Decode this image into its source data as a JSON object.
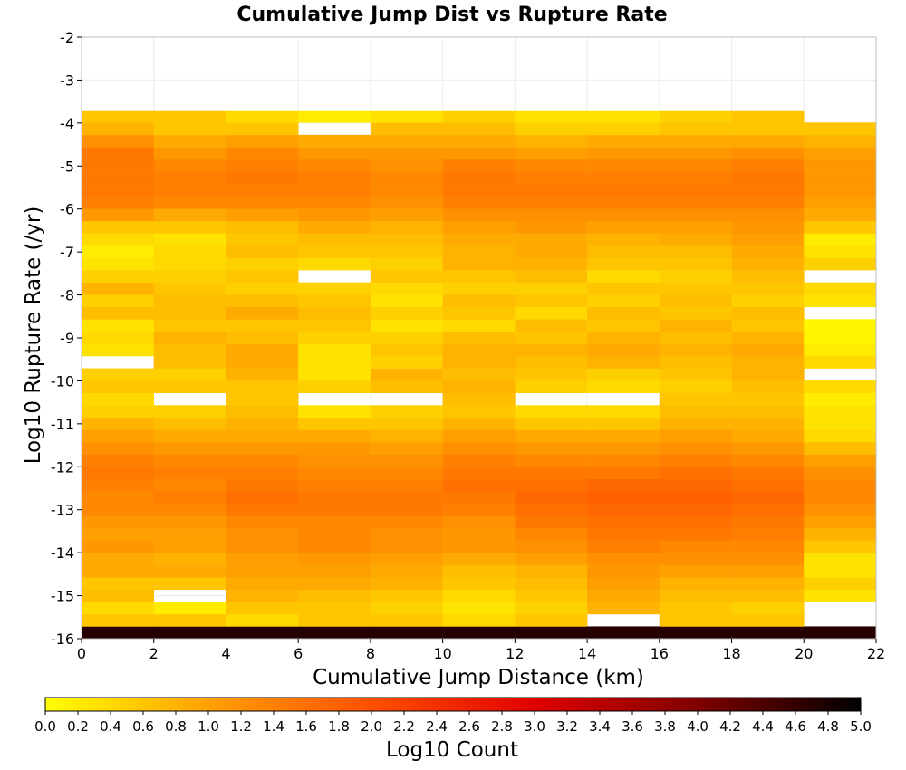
{
  "chart_data": {
    "type": "heatmap",
    "title": "Cumulative Jump Dist vs Rupture Rate",
    "xlabel": "Cumulative Jump Distance (km)",
    "ylabel": "Log10 Rupture Rate (/yr)",
    "xlim": [
      0,
      22
    ],
    "ylim": [
      -16,
      -2
    ],
    "x_ticks": [
      "0",
      "2",
      "4",
      "6",
      "8",
      "10",
      "12",
      "14",
      "16",
      "18",
      "20",
      "22"
    ],
    "y_ticks": [
      "-2",
      "-3",
      "-4",
      "-5",
      "-6",
      "-7",
      "-8",
      "-9",
      "-10",
      "-11",
      "-12",
      "-13",
      "-14",
      "-15",
      "-16"
    ],
    "grid": true,
    "x_bin_width": 2,
    "y_bin_width": 0.286,
    "y_bin_start": -16,
    "colorbar": {
      "label": "Log10 Count",
      "range": [
        0,
        5
      ],
      "ticks": [
        "0.0",
        "0.2",
        "0.4",
        "0.6",
        "0.8",
        "1.0",
        "1.2",
        "1.4",
        "1.6",
        "1.8",
        "2.0",
        "2.2",
        "2.4",
        "2.6",
        "2.8",
        "3.0",
        "3.2",
        "3.4",
        "3.6",
        "3.8",
        "4.0",
        "4.2",
        "4.4",
        "4.6",
        "4.8",
        "5.0"
      ],
      "colors": [
        "#ffff00",
        "#ffa000",
        "#ff5000",
        "#e00000",
        "#800000",
        "#000000"
      ]
    },
    "columns": [
      {
        "x": 1,
        "values": [
          4.7,
          0.6,
          0.4,
          0.7,
          0.6,
          0.9,
          0.9,
          1.1,
          1.0,
          1.1,
          1.3,
          1.3,
          1.4,
          1.5,
          1.4,
          1.2,
          1.0,
          0.8,
          0.5,
          0.4,
          0.6,
          0.5,
          null,
          0.3,
          0.4,
          0.3,
          0.7,
          0.5,
          0.8,
          0.5,
          0.3,
          0.2,
          0.4,
          0.6,
          1.1,
          1.4,
          1.5,
          1.5,
          1.5,
          1.5,
          1.2,
          0.8,
          0.6
        ]
      },
      {
        "x": 3,
        "values": [
          4.7,
          0.6,
          0.2,
          null,
          0.6,
          0.9,
          0.8,
          1.0,
          1.0,
          1.1,
          1.3,
          1.4,
          1.3,
          1.4,
          1.3,
          1.1,
          0.9,
          0.7,
          0.5,
          null,
          0.6,
          0.5,
          0.7,
          0.7,
          0.8,
          0.6,
          0.7,
          0.7,
          0.6,
          0.5,
          0.4,
          0.4,
          0.3,
          0.6,
          0.9,
          1.3,
          1.4,
          1.4,
          1.3,
          1.1,
          0.9,
          0.6,
          0.6
        ]
      },
      {
        "x": 5,
        "values": [
          4.7,
          0.4,
          0.6,
          0.8,
          0.9,
          1.0,
          1.0,
          1.2,
          1.2,
          1.3,
          1.5,
          1.6,
          1.5,
          1.4,
          1.3,
          1.1,
          0.9,
          0.8,
          0.7,
          0.6,
          0.6,
          0.8,
          0.9,
          0.9,
          0.7,
          0.6,
          0.9,
          0.7,
          0.5,
          0.6,
          0.5,
          0.7,
          0.6,
          0.7,
          1.0,
          1.3,
          1.4,
          1.5,
          1.4,
          1.3,
          1.0,
          0.6,
          0.4
        ]
      },
      {
        "x": 7,
        "values": [
          4.7,
          0.6,
          0.6,
          0.7,
          0.9,
          1.0,
          1.1,
          1.3,
          1.3,
          1.3,
          1.5,
          1.5,
          1.4,
          1.3,
          1.2,
          1.1,
          0.9,
          0.6,
          0.3,
          null,
          0.5,
          0.3,
          0.3,
          0.3,
          0.5,
          0.6,
          0.7,
          0.6,
          0.5,
          null,
          0.4,
          0.6,
          0.7,
          0.9,
          1.1,
          1.3,
          1.4,
          1.4,
          1.3,
          1.1,
          0.9,
          null,
          0.2
        ]
      },
      {
        "x": 9,
        "values": [
          4.7,
          0.6,
          0.5,
          0.6,
          0.8,
          0.9,
          1.0,
          1.2,
          1.2,
          1.3,
          1.5,
          1.5,
          1.4,
          1.3,
          1.2,
          1.0,
          0.8,
          0.6,
          0.5,
          null,
          0.7,
          0.8,
          0.5,
          0.6,
          0.5,
          0.3,
          0.5,
          0.3,
          0.4,
          0.6,
          0.5,
          0.6,
          0.7,
          0.8,
          1.0,
          1.2,
          1.3,
          1.3,
          1.2,
          1.1,
          0.9,
          0.7,
          0.3
        ]
      },
      {
        "x": 11,
        "values": [
          4.7,
          0.4,
          0.3,
          0.4,
          0.6,
          0.7,
          0.9,
          1.1,
          1.1,
          1.2,
          1.4,
          1.5,
          1.6,
          1.5,
          1.4,
          1.2,
          1.0,
          0.8,
          0.6,
          0.7,
          0.8,
          0.7,
          0.8,
          0.8,
          0.7,
          0.4,
          0.6,
          0.7,
          0.5,
          0.6,
          0.8,
          0.8,
          0.9,
          1.0,
          1.2,
          1.4,
          1.5,
          1.5,
          1.4,
          1.1,
          0.9,
          0.7,
          0.5
        ]
      },
      {
        "x": 13,
        "values": [
          4.7,
          0.6,
          0.5,
          0.6,
          0.7,
          0.8,
          1.0,
          1.2,
          1.3,
          1.5,
          1.6,
          1.7,
          1.6,
          1.5,
          1.3,
          1.1,
          0.9,
          0.6,
          0.4,
          null,
          0.5,
          0.6,
          0.7,
          0.8,
          0.6,
          0.7,
          0.4,
          0.6,
          0.5,
          0.7,
          0.8,
          0.9,
          0.9,
          1.1,
          1.2,
          1.4,
          1.5,
          1.4,
          1.3,
          1.0,
          0.8,
          0.5,
          0.3
        ]
      },
      {
        "x": 15,
        "values": [
          4.7,
          null,
          0.8,
          0.9,
          1.0,
          1.1,
          1.2,
          1.4,
          1.5,
          1.6,
          1.7,
          1.8,
          1.7,
          1.5,
          1.3,
          1.1,
          0.9,
          0.6,
          0.4,
          null,
          0.4,
          0.5,
          0.8,
          0.9,
          0.8,
          0.6,
          0.7,
          0.5,
          0.6,
          0.4,
          0.6,
          0.7,
          0.8,
          1.0,
          1.2,
          1.4,
          1.5,
          1.4,
          1.3,
          1.1,
          0.9,
          0.5,
          0.3
        ]
      },
      {
        "x": 17,
        "values": [
          4.7,
          0.6,
          0.6,
          0.7,
          0.8,
          1.0,
          1.2,
          1.3,
          1.5,
          1.6,
          1.7,
          1.8,
          1.7,
          1.6,
          1.4,
          1.2,
          1.0,
          0.8,
          0.7,
          0.6,
          0.5,
          0.6,
          0.7,
          0.8,
          0.7,
          0.8,
          0.6,
          0.7,
          0.6,
          0.5,
          0.6,
          0.7,
          0.9,
          1.0,
          1.2,
          1.4,
          1.5,
          1.4,
          1.3,
          1.1,
          0.9,
          0.6,
          0.5
        ]
      },
      {
        "x": 19,
        "values": [
          4.7,
          0.6,
          0.5,
          0.7,
          0.8,
          1.0,
          1.2,
          1.3,
          1.4,
          1.5,
          1.6,
          1.7,
          1.6,
          1.5,
          1.3,
          1.1,
          0.9,
          0.8,
          0.7,
          0.6,
          0.7,
          0.8,
          0.8,
          0.9,
          0.8,
          0.6,
          0.7,
          0.5,
          0.6,
          0.7,
          0.8,
          0.9,
          1.0,
          1.1,
          1.2,
          1.4,
          1.5,
          1.5,
          1.4,
          1.2,
          0.9,
          0.6,
          0.6
        ]
      },
      {
        "x": 21,
        "values": [
          4.7,
          null,
          null,
          0.3,
          0.5,
          0.3,
          0.3,
          0.6,
          0.8,
          1.0,
          1.2,
          1.3,
          1.3,
          1.2,
          1.0,
          0.7,
          0.4,
          0.3,
          0.3,
          0.2,
          0.4,
          null,
          0.4,
          0.2,
          0.1,
          0.1,
          null,
          0.3,
          0.4,
          null,
          0.5,
          0.3,
          0.2,
          0.6,
          0.9,
          1.0,
          1.1,
          1.1,
          1.1,
          1.0,
          0.8,
          0.6,
          null
        ]
      }
    ]
  }
}
